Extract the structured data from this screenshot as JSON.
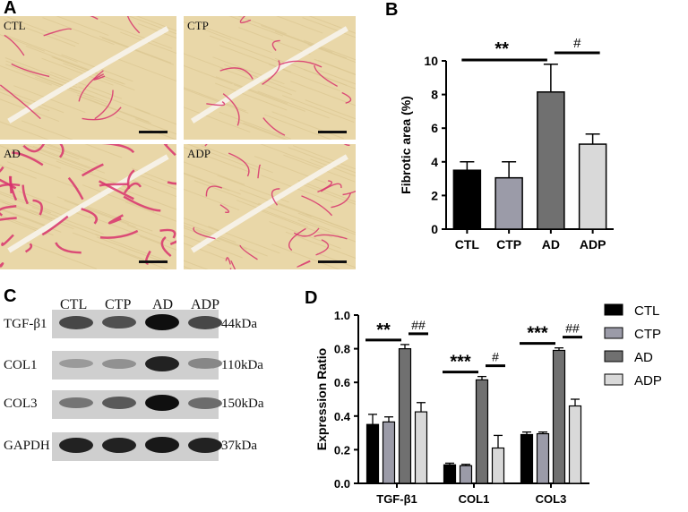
{
  "panels": {
    "A": "A",
    "B": "B",
    "C": "C",
    "D": "D"
  },
  "micrographs": [
    {
      "label": "CTL",
      "fibrosis": "low"
    },
    {
      "label": "CTP",
      "fibrosis": "low"
    },
    {
      "label": "AD",
      "fibrosis": "high"
    },
    {
      "label": "ADP",
      "fibrosis": "medium"
    }
  ],
  "western_blot": {
    "lanes": [
      "CTL",
      "CTP",
      "AD",
      "ADP"
    ],
    "rows": [
      {
        "protein": "TGF-β1",
        "size": "44kDa",
        "intensity": [
          0.7,
          0.65,
          1.0,
          0.7
        ]
      },
      {
        "protein": "COL1",
        "size": "110kDa",
        "intensity": [
          0.25,
          0.3,
          0.9,
          0.35
        ]
      },
      {
        "protein": "COL3",
        "size": "150kDa",
        "intensity": [
          0.45,
          0.6,
          1.0,
          0.5
        ]
      },
      {
        "protein": "GAPDH",
        "size": "37kDa",
        "intensity": [
          0.9,
          0.9,
          0.95,
          0.9
        ]
      }
    ]
  },
  "chart_data": [
    {
      "type": "bar",
      "panel": "B",
      "categories": [
        "CTL",
        "CTP",
        "AD",
        "ADP"
      ],
      "values": [
        3.5,
        3.05,
        8.15,
        5.05
      ],
      "errors": [
        0.5,
        0.95,
        1.65,
        0.6
      ],
      "colors": [
        "#000000",
        "#9b9ba8",
        "#707070",
        "#d9d9d9"
      ],
      "ylabel": "Fibrotic area (%)",
      "xlabel": "",
      "ylim": [
        0,
        10
      ],
      "yticks": [
        "0",
        "2",
        "4",
        "6",
        "8",
        "10"
      ],
      "annotations": [
        {
          "text": "**",
          "from": "CTL",
          "to": "AD"
        },
        {
          "text": "#",
          "from": "AD",
          "to": "ADP"
        }
      ]
    },
    {
      "type": "bar",
      "panel": "D",
      "categories": [
        "TGF-β1",
        "COL1",
        "COL3"
      ],
      "series": [
        {
          "name": "CTL",
          "color": "#000000",
          "values": [
            0.35,
            0.11,
            0.29
          ],
          "errors": [
            0.06,
            0.01,
            0.015
          ]
        },
        {
          "name": "CTP",
          "color": "#9b9ba8",
          "values": [
            0.365,
            0.105,
            0.295
          ],
          "errors": [
            0.03,
            0.008,
            0.01
          ]
        },
        {
          "name": "AD",
          "color": "#707070",
          "values": [
            0.8,
            0.615,
            0.79
          ],
          "errors": [
            0.025,
            0.02,
            0.015
          ]
        },
        {
          "name": "ADP",
          "color": "#d9d9d9",
          "values": [
            0.425,
            0.21,
            0.46
          ],
          "errors": [
            0.055,
            0.075,
            0.04
          ]
        }
      ],
      "ylabel": "Expression Ratio",
      "xlabel": "",
      "ylim": [
        0,
        1.0
      ],
      "yticks": [
        "0.0",
        "0.2",
        "0.4",
        "0.6",
        "0.8",
        "1.0"
      ],
      "legend": "right",
      "annotations": [
        {
          "group": "TGF-β1",
          "text": "**",
          "from": "CTL",
          "to": "AD"
        },
        {
          "group": "TGF-β1",
          "text": "##",
          "from": "AD",
          "to": "ADP"
        },
        {
          "group": "COL1",
          "text": "***",
          "from": "CTL",
          "to": "AD"
        },
        {
          "group": "COL1",
          "text": "#",
          "from": "AD",
          "to": "ADP"
        },
        {
          "group": "COL3",
          "text": "***",
          "from": "CTL",
          "to": "AD"
        },
        {
          "group": "COL3",
          "text": "##",
          "from": "AD",
          "to": "ADP"
        }
      ]
    }
  ]
}
